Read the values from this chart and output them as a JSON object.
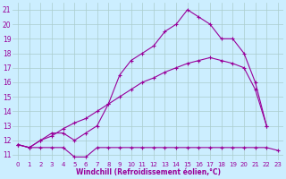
{
  "xlabel": "Windchill (Refroidissement éolien,°C)",
  "bg_color": "#cceeff",
  "grid_color": "#aacccc",
  "line_color": "#990099",
  "xlim": [
    -0.5,
    23.5
  ],
  "ylim": [
    10.6,
    21.5
  ],
  "xticks": [
    0,
    1,
    2,
    3,
    4,
    5,
    6,
    7,
    8,
    9,
    10,
    11,
    12,
    13,
    14,
    15,
    16,
    17,
    18,
    19,
    20,
    21,
    22,
    23
  ],
  "yticks": [
    11,
    12,
    13,
    14,
    15,
    16,
    17,
    18,
    19,
    20,
    21
  ],
  "line_flat_x": [
    0,
    1,
    2,
    3,
    4,
    5,
    6,
    7,
    8,
    9,
    10,
    11,
    12,
    13,
    14,
    15,
    16,
    17,
    18,
    19,
    20,
    21,
    22,
    23
  ],
  "line_flat_y": [
    11.7,
    11.5,
    11.5,
    11.5,
    11.5,
    10.85,
    10.85,
    11.5,
    11.5,
    11.5,
    11.5,
    11.5,
    11.5,
    11.5,
    11.5,
    11.5,
    11.5,
    11.5,
    11.5,
    11.5,
    11.5,
    11.5,
    11.5,
    11.3
  ],
  "line_diag_x": [
    0,
    1,
    2,
    3,
    4,
    5,
    6,
    7,
    8,
    9,
    10,
    11,
    12,
    13,
    14,
    15,
    16,
    17,
    18,
    19,
    20,
    21,
    22
  ],
  "line_diag_y": [
    11.7,
    11.5,
    12.0,
    12.3,
    12.8,
    13.2,
    13.5,
    14.0,
    14.5,
    15.0,
    15.5,
    16.0,
    16.3,
    16.7,
    17.0,
    17.3,
    17.5,
    17.7,
    17.5,
    17.3,
    17.0,
    15.5,
    13.0
  ],
  "line_peak_x": [
    0,
    1,
    2,
    3,
    4,
    5,
    6,
    7,
    8,
    9,
    10,
    11,
    12,
    13,
    14,
    15,
    16,
    17,
    18,
    19,
    20,
    21,
    22
  ],
  "line_peak_y": [
    11.7,
    11.5,
    12.0,
    12.5,
    12.5,
    12.0,
    12.5,
    13.0,
    14.5,
    16.5,
    17.5,
    18.0,
    18.5,
    19.5,
    20.0,
    21.0,
    20.5,
    20.0,
    19.0,
    19.0,
    18.0,
    16.0,
    13.0
  ]
}
